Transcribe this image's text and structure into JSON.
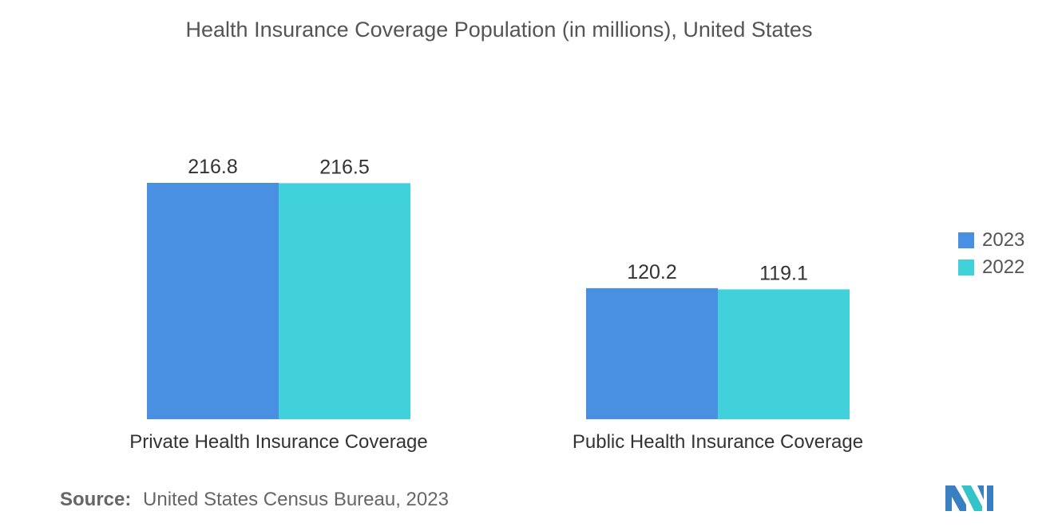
{
  "chart_data": {
    "type": "bar",
    "title": "Health Insurance Coverage Population (in millions), United States",
    "categories": [
      "Private Health Insurance Coverage",
      "Public Health Insurance Coverage"
    ],
    "series": [
      {
        "name": "2023",
        "values": [
          216.8,
          120.2
        ],
        "color": "#4a90e2"
      },
      {
        "name": "2022",
        "values": [
          216.5,
          119.1
        ],
        "color": "#41d1da"
      }
    ],
    "xlabel": "",
    "ylabel": "",
    "ylim": [
      0,
      216.8
    ],
    "grid": false,
    "legend_position": "right"
  },
  "source": {
    "label": "Source:",
    "text": "United States Census Bureau, 2023"
  },
  "logo": {
    "colors": [
      "#3a7fc1",
      "#34c4c7"
    ]
  }
}
